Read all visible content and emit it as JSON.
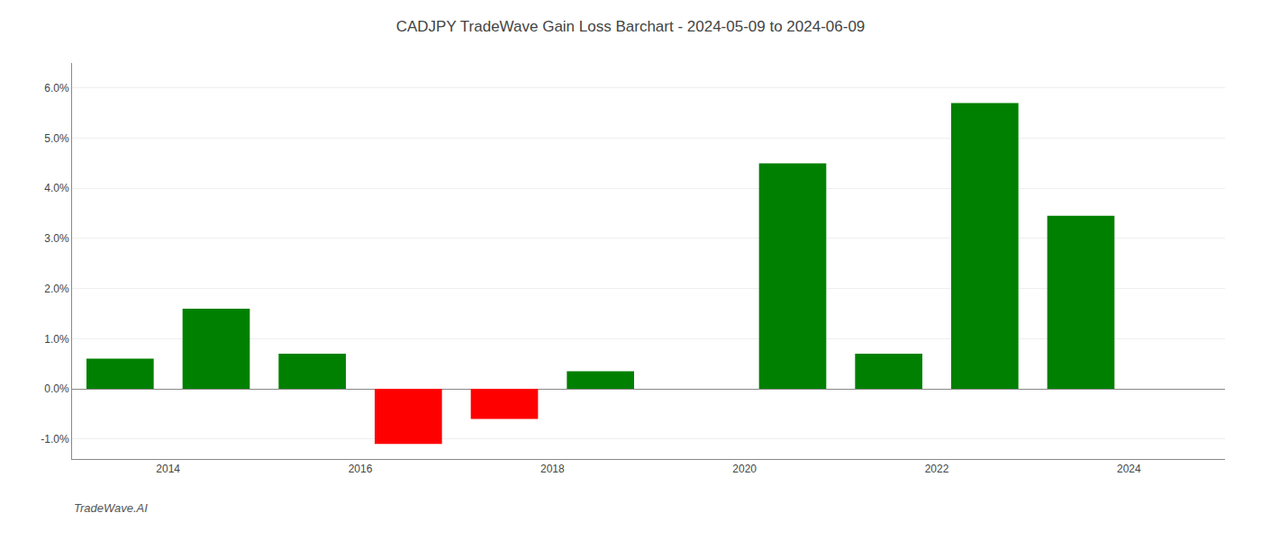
{
  "chart_data": {
    "type": "bar",
    "title": "CADJPY TradeWave Gain Loss Barchart - 2024-05-09 to 2024-06-09",
    "annotations": [
      "TradeWave.AI"
    ],
    "x": [
      2013,
      2014,
      2015,
      2016,
      2017,
      2018,
      2019,
      2020,
      2021,
      2022,
      2023
    ],
    "values": [
      0.006,
      0.016,
      0.007,
      -0.011,
      -0.006,
      0.0035,
      0.0,
      0.045,
      0.007,
      0.057,
      0.0345
    ],
    "colors": [
      "#008000",
      "#008000",
      "#008000",
      "#ff0000",
      "#ff0000",
      "#008000",
      null,
      "#008000",
      "#008000",
      "#008000",
      "#008000"
    ],
    "xlim": [
      2012.5,
      2024.5
    ],
    "xticks": [
      {
        "value": 2013.5,
        "label": "2014"
      },
      {
        "value": 2015.5,
        "label": "2016"
      },
      {
        "value": 2017.5,
        "label": "2018"
      },
      {
        "value": 2019.5,
        "label": "2020"
      },
      {
        "value": 2021.5,
        "label": "2022"
      },
      {
        "value": 2023.5,
        "label": "2024"
      }
    ],
    "ylim": [
      -0.014,
      0.065
    ],
    "yticks": [
      {
        "value": -0.01,
        "label": "-1.0%"
      },
      {
        "value": 0.0,
        "label": "0.0%"
      },
      {
        "value": 0.01,
        "label": "1.0%"
      },
      {
        "value": 0.02,
        "label": "2.0%"
      },
      {
        "value": 0.03,
        "label": "3.0%"
      },
      {
        "value": 0.04,
        "label": "4.0%"
      },
      {
        "value": 0.05,
        "label": "5.0%"
      },
      {
        "value": 0.06,
        "label": "6.0%"
      }
    ],
    "grid": true
  }
}
